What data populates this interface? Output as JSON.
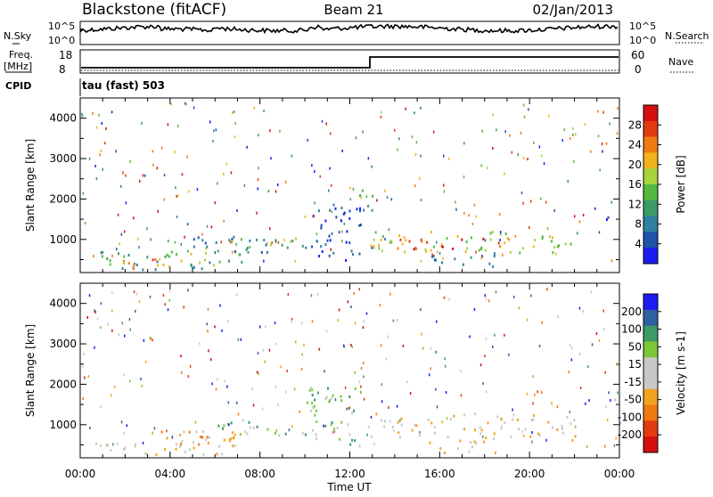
{
  "header": {
    "station": "Blackstone (fitACF)",
    "beam": "Beam 21",
    "date": "02/Jan/2013"
  },
  "noise_panel": {
    "left_label": "N.Sky",
    "left_ticks": [
      "10^5",
      "10^0"
    ],
    "right_label": "N.Search",
    "right_ticks": [
      "10^5",
      "10^0"
    ]
  },
  "freq_panel": {
    "left_label_line1": "Freq.",
    "left_label_line2": "[MHz]",
    "left_ticks": [
      "18",
      "8"
    ],
    "right_label": "Nave",
    "right_ticks": [
      "60",
      "0"
    ],
    "cpid_label": "CPID",
    "program": "tau (fast) 503"
  },
  "x_axis": {
    "title": "Time UT",
    "tick_labels": [
      "00:00",
      "04:00",
      "08:00",
      "12:00",
      "16:00",
      "20:00",
      "00:00"
    ]
  },
  "chart_data": [
    {
      "type": "heatmap",
      "quantity": "power",
      "ylabel": "Slant Range [km]",
      "ylim": [
        180,
        4500
      ],
      "xlim_hours": [
        0,
        24
      ],
      "y_ticks": [
        "4000",
        "3000",
        "2000",
        "1000"
      ],
      "colorbar_title": "Power [dB]",
      "colorbar_ticks": [
        "28",
        "24",
        "20",
        "16",
        "12",
        "8",
        "4"
      ],
      "colors": [
        "#1c1cf2",
        "#1f52a8",
        "#2f80a0",
        "#3e9a66",
        "#55b840",
        "#a8d43a",
        "#f2b21c",
        "#ef7a12",
        "#e23b10",
        "#d40f0f"
      ],
      "regions": [
        {
          "t0": 0.6,
          "t1": 7.2,
          "r0": 280,
          "r1": 750,
          "level": 3
        },
        {
          "t0": 1.0,
          "t1": 3.5,
          "r0": 300,
          "r1": 600,
          "level": 7
        },
        {
          "t0": 3.5,
          "t1": 6.0,
          "r0": 350,
          "r1": 700,
          "level": 5
        },
        {
          "t0": 5.0,
          "t1": 10.5,
          "r0": 700,
          "r1": 1100,
          "level": 2
        },
        {
          "t0": 6.0,
          "t1": 10.0,
          "r0": 850,
          "r1": 1050,
          "level": 4
        },
        {
          "t0": 10.0,
          "t1": 12.5,
          "r0": 500,
          "r1": 1900,
          "level": 1
        },
        {
          "t0": 12.2,
          "t1": 13.0,
          "r0": 1600,
          "r1": 2300,
          "level": 3
        },
        {
          "t0": 12.8,
          "t1": 22.0,
          "r0": 700,
          "r1": 1250,
          "level": 5
        },
        {
          "t0": 14.0,
          "t1": 19.0,
          "r0": 780,
          "r1": 1050,
          "level": 8
        },
        {
          "t0": 15.5,
          "t1": 18.5,
          "r0": 300,
          "r1": 700,
          "level": 2
        },
        {
          "t0": 23.0,
          "t1": 23.8,
          "r0": 1500,
          "r1": 1700,
          "level": 1
        }
      ]
    },
    {
      "type": "heatmap",
      "quantity": "velocity",
      "ylabel": "Slant Range [km]",
      "ylim": [
        180,
        4500
      ],
      "xlim_hours": [
        0,
        24
      ],
      "y_ticks": [
        "4000",
        "3000",
        "2000",
        "1000"
      ],
      "colorbar_title": "Velocity [m s-1]",
      "colorbar_ticks": [
        "200",
        "100",
        "50",
        "15",
        "-15",
        "-50",
        "-100",
        "-200"
      ],
      "colors": [
        "#d40f0f",
        "#e23b10",
        "#ef7a12",
        "#f2a21c",
        "#c8c8c8",
        "#c8c8c8",
        "#7ac83a",
        "#3e9a66",
        "#2f60a0",
        "#1c1cf2"
      ],
      "regions": [
        {
          "t0": 0.6,
          "t1": 7.2,
          "r0": 280,
          "r1": 750,
          "level": 4
        },
        {
          "t0": 3.5,
          "t1": 7.5,
          "r0": 500,
          "r1": 900,
          "level": 3
        },
        {
          "t0": 6.0,
          "t1": 10.5,
          "r0": 750,
          "r1": 1150,
          "level": 6
        },
        {
          "t0": 10.0,
          "t1": 12.5,
          "r0": 500,
          "r1": 2100,
          "level": 6
        },
        {
          "t0": 12.8,
          "t1": 22.0,
          "r0": 700,
          "r1": 1300,
          "level": 4
        },
        {
          "t0": 15.5,
          "t1": 18.5,
          "r0": 300,
          "r1": 700,
          "level": 4
        },
        {
          "t0": 23.0,
          "t1": 23.8,
          "r0": 1500,
          "r1": 1700,
          "level": 4
        }
      ]
    }
  ]
}
